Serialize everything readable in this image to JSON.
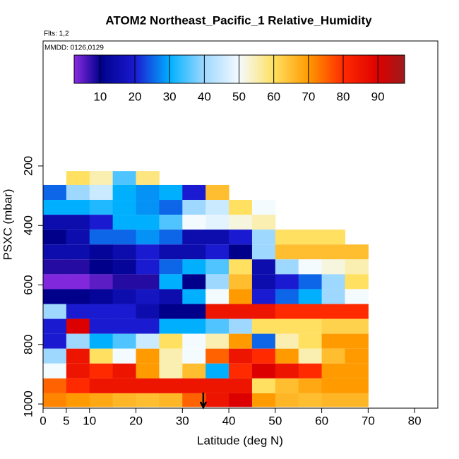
{
  "chart_data": {
    "type": "heatmap-strips",
    "title": "ATOM2 Northeast_Pacific_1 Relative_Humidity",
    "flights_label": "Flts: 1,2",
    "date_label": "MMDD: 0126,0129",
    "x_label": "Latitude (deg N)",
    "y_label": "PSXC (mbar)",
    "xlim": [
      0,
      85
    ],
    "xticks": [
      0,
      5,
      10,
      20,
      30,
      40,
      50,
      60,
      70,
      80
    ],
    "ylim": [
      1014,
      -220
    ],
    "yticks": [
      200,
      400,
      600,
      800,
      1000
    ],
    "colorbar_lim": [
      2.5,
      97.7
    ],
    "colorbar_ticks": [
      10,
      20,
      30,
      40,
      50,
      60,
      70,
      80,
      90
    ],
    "colorscale": [
      [
        2.5,
        "#8a2be2"
      ],
      [
        10,
        "#00008b"
      ],
      [
        20,
        "#1a1ad0"
      ],
      [
        30,
        "#00b0ff"
      ],
      [
        40,
        "#9fd8ff"
      ],
      [
        50,
        "#f4fbff"
      ],
      [
        60,
        "#ffe060"
      ],
      [
        70,
        "#ff9a00"
      ],
      [
        80,
        "#ff2a00"
      ],
      [
        90,
        "#dd0000"
      ],
      [
        97.7,
        "#9b1c1c"
      ]
    ],
    "marker_lat": 34.5,
    "strips": [
      {
        "pressure": [
          217,
          264
        ],
        "lat": [
          5,
          10,
          15,
          20
        ],
        "rh": [
          60,
          55,
          35,
          58
        ]
      },
      {
        "pressure": [
          264,
          314
        ],
        "lat": [
          0,
          5,
          10,
          15,
          20,
          25,
          30,
          35
        ],
        "rh": [
          25,
          40,
          45,
          30,
          28,
          30,
          20,
          65
        ]
      },
      {
        "pressure": [
          314,
          364
        ],
        "lat": [
          0,
          5,
          10,
          15,
          20,
          25,
          30,
          35,
          40,
          45
        ],
        "rh": [
          30,
          30,
          32,
          30,
          28,
          25,
          40,
          45,
          60,
          50
        ]
      },
      {
        "pressure": [
          364,
          414
        ],
        "lat": [
          0,
          5,
          10,
          15,
          20,
          25,
          30,
          35,
          40,
          45
        ],
        "rh": [
          15,
          15,
          20,
          30,
          30,
          35,
          50,
          48,
          52,
          55
        ]
      },
      {
        "pressure": [
          414,
          464
        ],
        "lat": [
          0,
          5,
          10,
          15,
          20,
          25,
          30,
          35,
          40,
          45,
          50,
          55,
          60
        ],
        "rh": [
          10,
          15,
          25,
          25,
          28,
          25,
          15,
          15,
          20,
          40,
          60,
          60,
          60
        ]
      },
      {
        "pressure": [
          464,
          514
        ],
        "lat": [
          0,
          5,
          10,
          15,
          20,
          25,
          30,
          35,
          40,
          45,
          50,
          55,
          60,
          65
        ],
        "rh": [
          15,
          15,
          12,
          15,
          20,
          15,
          15,
          20,
          10,
          40,
          65,
          65,
          65,
          65
        ]
      },
      {
        "pressure": [
          514,
          564
        ],
        "lat": [
          0,
          5,
          10,
          15,
          20,
          25,
          30,
          35,
          40,
          45,
          50,
          55,
          60,
          65
        ],
        "rh": [
          8,
          8,
          10,
          12,
          20,
          25,
          30,
          35,
          60,
          15,
          40,
          50,
          52,
          55
        ]
      },
      {
        "pressure": [
          564,
          614
        ],
        "lat": [
          0,
          5,
          10,
          15,
          20,
          25,
          30,
          35,
          40,
          45,
          50,
          55,
          60,
          65
        ],
        "rh": [
          3,
          3,
          5,
          8,
          8,
          30,
          10,
          40,
          65,
          15,
          20,
          25,
          40,
          60
        ]
      },
      {
        "pressure": [
          614,
          664
        ],
        "lat": [
          0,
          5,
          10,
          15,
          20,
          25,
          30,
          35,
          40,
          45,
          50,
          55,
          60,
          65
        ],
        "rh": [
          10,
          10,
          12,
          15,
          18,
          15,
          30,
          50,
          70,
          20,
          25,
          30,
          40,
          50
        ]
      },
      {
        "pressure": [
          664,
          714
        ],
        "lat": [
          0,
          5,
          10,
          15,
          20,
          25,
          30,
          35,
          40,
          45,
          50,
          55,
          60,
          65
        ],
        "rh": [
          40,
          20,
          20,
          20,
          15,
          10,
          10,
          85,
          85,
          85,
          80,
          80,
          80,
          80
        ]
      },
      {
        "pressure": [
          714,
          764
        ],
        "lat": [
          0,
          5,
          10,
          15,
          20,
          25,
          30,
          35,
          40,
          45,
          50,
          55,
          60,
          65
        ],
        "rh": [
          20,
          90,
          20,
          20,
          20,
          30,
          30,
          35,
          40,
          60,
          60,
          60,
          62,
          62
        ]
      },
      {
        "pressure": [
          764,
          814
        ],
        "lat": [
          0,
          5,
          10,
          15,
          20,
          25,
          30,
          35,
          40,
          45,
          50,
          55,
          60,
          65
        ],
        "rh": [
          20,
          40,
          30,
          35,
          45,
          60,
          50,
          55,
          70,
          25,
          55,
          60,
          70,
          70
        ]
      },
      {
        "pressure": [
          814,
          864
        ],
        "lat": [
          0,
          5,
          10,
          15,
          20,
          25,
          30,
          35,
          40,
          45,
          50,
          55,
          60,
          65
        ],
        "rh": [
          40,
          85,
          60,
          50,
          70,
          55,
          50,
          75,
          85,
          80,
          70,
          55,
          65,
          70
        ]
      },
      {
        "pressure": [
          864,
          914
        ],
        "lat": [
          0,
          5,
          10,
          15,
          20,
          25,
          30,
          35,
          40,
          45,
          50,
          55,
          60,
          65
        ],
        "rh": [
          50,
          85,
          80,
          85,
          70,
          55,
          65,
          30,
          80,
          90,
          85,
          80,
          70,
          70
        ]
      },
      {
        "pressure": [
          914,
          964
        ],
        "lat": [
          0,
          5,
          10,
          15,
          20,
          25,
          30,
          35,
          40,
          45,
          50,
          55,
          60,
          65
        ],
        "rh": [
          75,
          80,
          85,
          85,
          85,
          85,
          85,
          85,
          85,
          60,
          65,
          68,
          70,
          70
        ]
      },
      {
        "pressure": [
          964,
          1010
        ],
        "lat": [
          0,
          5,
          10,
          15,
          20,
          25,
          30,
          35,
          40,
          45,
          50,
          55,
          60,
          65
        ],
        "rh": [
          72,
          70,
          68,
          66,
          65,
          66,
          75,
          85,
          90,
          70,
          66,
          65,
          66,
          66
        ]
      }
    ]
  }
}
